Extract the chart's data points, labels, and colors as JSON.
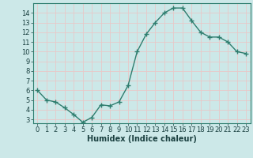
{
  "x": [
    0,
    1,
    2,
    3,
    4,
    5,
    6,
    7,
    8,
    9,
    10,
    11,
    12,
    13,
    14,
    15,
    16,
    17,
    18,
    19,
    20,
    21,
    22,
    23
  ],
  "y": [
    6.0,
    5.0,
    4.8,
    4.2,
    3.5,
    2.7,
    3.2,
    4.5,
    4.4,
    4.8,
    6.5,
    10.0,
    11.8,
    13.0,
    14.0,
    14.5,
    14.5,
    13.2,
    12.0,
    11.5,
    11.5,
    11.0,
    10.0,
    9.8
  ],
  "xlabel": "Humidex (Indice chaleur)",
  "line_color": "#2e7d6e",
  "marker": "+",
  "bg_color": "#cce8e8",
  "grid_color": "#e8c8c8",
  "yticks": [
    3,
    4,
    5,
    6,
    7,
    8,
    9,
    10,
    11,
    12,
    13,
    14
  ],
  "xticks": [
    0,
    1,
    2,
    3,
    4,
    5,
    6,
    7,
    8,
    9,
    10,
    11,
    12,
    13,
    14,
    15,
    16,
    17,
    18,
    19,
    20,
    21,
    22,
    23
  ],
  "xtick_labels": [
    "0",
    "1",
    "2",
    "3",
    "4",
    "5",
    "6",
    "7",
    "8",
    "9",
    "10",
    "11",
    "12",
    "13",
    "14",
    "15",
    "16",
    "17",
    "18",
    "19",
    "20",
    "21",
    "22",
    "23"
  ],
  "ytick_labels": [
    "3",
    "4",
    "5",
    "6",
    "7",
    "8",
    "9",
    "10",
    "11",
    "12",
    "13",
    "14"
  ],
  "font_color": "#1a4040",
  "spine_color": "#2e7d6e",
  "tick_fontsize": 6.0,
  "xlabel_fontsize": 7.0,
  "ylim_min": 2.6,
  "ylim_max": 15.0,
  "xlim_min": -0.5,
  "xlim_max": 23.5
}
